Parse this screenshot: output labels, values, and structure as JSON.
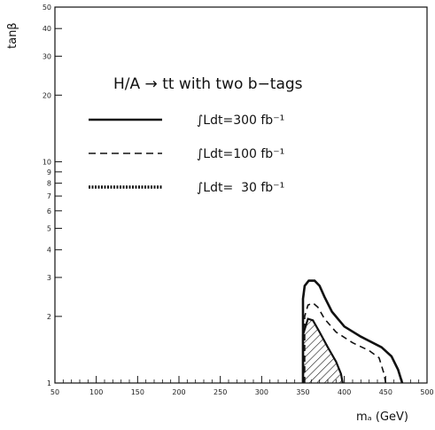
{
  "chart_data": {
    "type": "line",
    "title": "H/A → tt with two b−tags",
    "xlabel": "mₐ (GeV)",
    "ylabel": "tanβ",
    "xlim": [
      50,
      500
    ],
    "ylim": [
      1,
      50
    ],
    "yscale": "log",
    "grid": false,
    "legend_position": "top-left",
    "x_ticks": [
      50,
      100,
      150,
      200,
      250,
      300,
      350,
      400,
      450,
      500
    ],
    "y_ticks": [
      1,
      2,
      3,
      4,
      5,
      6,
      7,
      8,
      9,
      10,
      20,
      30,
      40,
      50
    ],
    "y_tick_labels": [
      "1",
      "2",
      "3",
      "4",
      "5",
      "6",
      "7",
      "8",
      "9",
      "10",
      "20",
      "30",
      "40",
      "50"
    ],
    "series": [
      {
        "name": "∫Ldt=300 fb⁻¹",
        "style": "solid",
        "color": "#111111",
        "points": [
          [
            350,
            1.0
          ],
          [
            350,
            2.4
          ],
          [
            352,
            2.75
          ],
          [
            357,
            2.9
          ],
          [
            364,
            2.9
          ],
          [
            370,
            2.75
          ],
          [
            376,
            2.45
          ],
          [
            385,
            2.1
          ],
          [
            400,
            1.8
          ],
          [
            420,
            1.62
          ],
          [
            445,
            1.45
          ],
          [
            457,
            1.32
          ],
          [
            465,
            1.15
          ],
          [
            470,
            1.0
          ]
        ]
      },
      {
        "name": "∫Ldt=100 fb⁻¹",
        "style": "dashed",
        "color": "#111111",
        "points": [
          [
            352,
            1.0
          ],
          [
            352,
            2.0
          ],
          [
            356,
            2.25
          ],
          [
            362,
            2.3
          ],
          [
            368,
            2.2
          ],
          [
            376,
            1.95
          ],
          [
            390,
            1.7
          ],
          [
            410,
            1.52
          ],
          [
            430,
            1.4
          ],
          [
            442,
            1.3
          ],
          [
            448,
            1.1
          ],
          [
            450,
            1.0
          ]
        ]
      },
      {
        "name": "∫Ldt=  30 fb⁻¹",
        "style": "hatched",
        "color": "#111111",
        "points": [
          [
            350,
            1.0
          ],
          [
            350,
            1.65
          ],
          [
            356,
            1.95
          ],
          [
            362,
            1.92
          ],
          [
            370,
            1.7
          ],
          [
            380,
            1.45
          ],
          [
            390,
            1.25
          ],
          [
            396,
            1.1
          ],
          [
            398,
            1.0
          ]
        ]
      }
    ]
  }
}
